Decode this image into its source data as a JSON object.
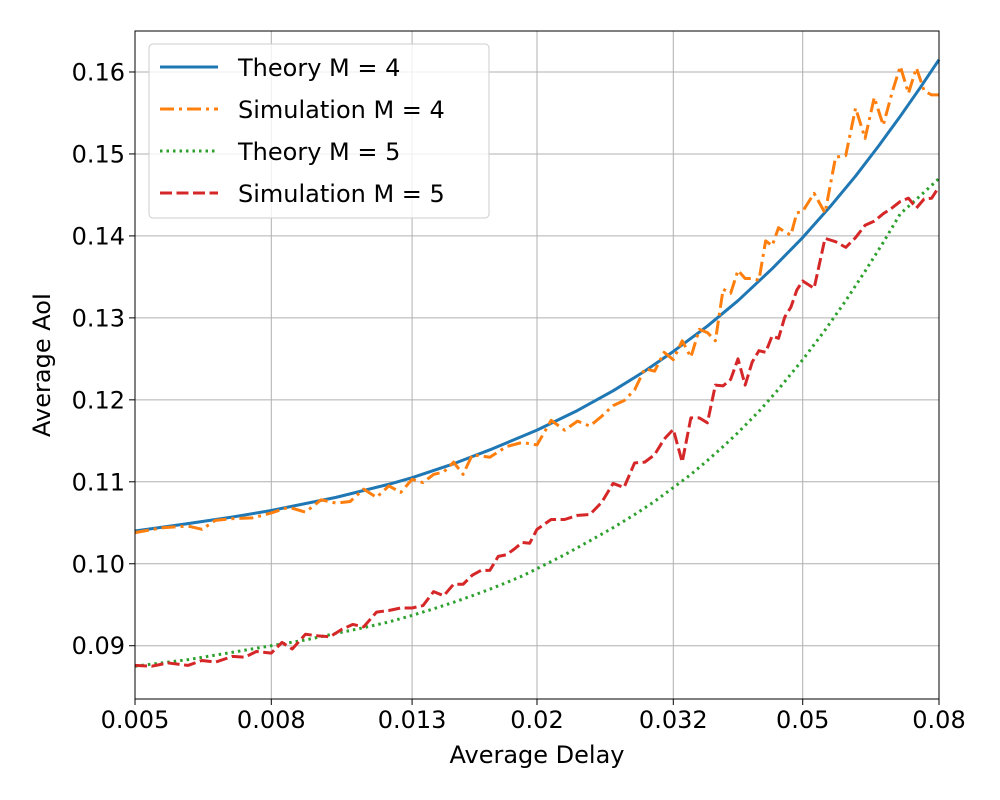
{
  "chart_data": {
    "type": "line",
    "title": "",
    "xlabel": "Average Delay",
    "ylabel": "Average AoI",
    "xscale": "log",
    "xlim": [
      0.005,
      0.08
    ],
    "ylim": [
      0.0835,
      0.165
    ],
    "xticks": [
      0.005,
      0.008,
      0.013,
      0.02,
      0.032,
      0.05,
      0.08
    ],
    "xtick_labels": [
      "0.005",
      "0.008",
      "0.013",
      "0.02",
      "0.032",
      "0.05",
      "0.08"
    ],
    "yticks": [
      0.09,
      0.1,
      0.11,
      0.12,
      0.13,
      0.14,
      0.15,
      0.16
    ],
    "ytick_labels": [
      "0.09",
      "0.10",
      "0.11",
      "0.12",
      "0.13",
      "0.14",
      "0.15",
      "0.16"
    ],
    "grid": true,
    "legend_position": "top-left",
    "series": [
      {
        "name": "Theory M = 4",
        "color": "#1f77b4",
        "style": "solid",
        "x": [
          0.005,
          0.006,
          0.007,
          0.008,
          0.01,
          0.012,
          0.013,
          0.015,
          0.017,
          0.02,
          0.023,
          0.026,
          0.029,
          0.032,
          0.036,
          0.04,
          0.045,
          0.05,
          0.055,
          0.06,
          0.065,
          0.07,
          0.075,
          0.08
        ],
        "y": [
          0.104,
          0.1049,
          0.1057,
          0.1065,
          0.1081,
          0.1097,
          0.1105,
          0.1122,
          0.1139,
          0.1163,
          0.1187,
          0.1211,
          0.1235,
          0.1259,
          0.129,
          0.1321,
          0.136,
          0.1398,
          0.1436,
          0.1473,
          0.151,
          0.1546,
          0.1581,
          0.1615
        ]
      },
      {
        "name": "Simulation M = 4",
        "color": "#ff7f0e",
        "style": "dashdot",
        "x": [
          0.005,
          0.0055,
          0.006,
          0.0063,
          0.0066,
          0.007,
          0.0075,
          0.008,
          0.0085,
          0.009,
          0.0095,
          0.01,
          0.0105,
          0.011,
          0.0115,
          0.012,
          0.0125,
          0.013,
          0.0135,
          0.014,
          0.0145,
          0.015,
          0.0155,
          0.016,
          0.017,
          0.018,
          0.019,
          0.02,
          0.021,
          0.022,
          0.023,
          0.024,
          0.025,
          0.026,
          0.027,
          0.028,
          0.029,
          0.03,
          0.031,
          0.032,
          0.033,
          0.034,
          0.035,
          0.036,
          0.037,
          0.038,
          0.039,
          0.04,
          0.041,
          0.042,
          0.043,
          0.044,
          0.045,
          0.046,
          0.047,
          0.048,
          0.049,
          0.05,
          0.052,
          0.054,
          0.056,
          0.058,
          0.06,
          0.062,
          0.064,
          0.066,
          0.068,
          0.07,
          0.072,
          0.074,
          0.076,
          0.078,
          0.08
        ],
        "y": [
          0.1038,
          0.1044,
          0.1046,
          0.1042,
          0.1053,
          0.1055,
          0.1056,
          0.1062,
          0.1069,
          0.1063,
          0.1078,
          0.1074,
          0.1076,
          0.1091,
          0.1081,
          0.1095,
          0.1087,
          0.1103,
          0.1099,
          0.1109,
          0.1112,
          0.1124,
          0.1109,
          0.1133,
          0.113,
          0.1143,
          0.1148,
          0.1145,
          0.1175,
          0.1163,
          0.1174,
          0.1168,
          0.118,
          0.1193,
          0.1199,
          0.1212,
          0.1238,
          0.1235,
          0.1258,
          0.1249,
          0.1272,
          0.1252,
          0.1286,
          0.1282,
          0.1272,
          0.1335,
          0.133,
          0.1358,
          0.1348,
          0.1348,
          0.1346,
          0.1394,
          0.1388,
          0.141,
          0.1405,
          0.1401,
          0.1428,
          0.143,
          0.1452,
          0.1428,
          0.1496,
          0.1498,
          0.1556,
          0.1519,
          0.1569,
          0.1535,
          0.1574,
          0.1607,
          0.1574,
          0.1605,
          0.1577,
          0.1572,
          0.1572
        ]
      },
      {
        "name": "Theory M = 5",
        "color": "#2ca02c",
        "style": "dotted",
        "x": [
          0.005,
          0.006,
          0.007,
          0.008,
          0.009,
          0.01,
          0.011,
          0.012,
          0.013,
          0.014,
          0.015,
          0.016,
          0.017,
          0.018,
          0.019,
          0.02,
          0.022,
          0.024,
          0.026,
          0.028,
          0.03,
          0.032,
          0.034,
          0.036,
          0.038,
          0.04,
          0.043,
          0.046,
          0.05,
          0.054,
          0.058,
          0.062,
          0.066,
          0.07,
          0.075,
          0.08
        ],
        "y": [
          0.0875,
          0.0883,
          0.0892,
          0.09,
          0.0907,
          0.0915,
          0.0922,
          0.0929,
          0.0937,
          0.0945,
          0.0953,
          0.0961,
          0.0969,
          0.0977,
          0.0985,
          0.0994,
          0.1011,
          0.1028,
          0.1044,
          0.106,
          0.1076,
          0.1093,
          0.1109,
          0.1126,
          0.1143,
          0.116,
          0.1186,
          0.1213,
          0.1249,
          0.1285,
          0.1321,
          0.1357,
          0.1392,
          0.1427,
          0.1449,
          0.147
        ]
      },
      {
        "name": "Simulation M = 5",
        "color": "#d62728",
        "style": "dashed",
        "x": [
          0.005,
          0.0053,
          0.0056,
          0.006,
          0.0063,
          0.0066,
          0.007,
          0.0073,
          0.0076,
          0.008,
          0.0083,
          0.0086,
          0.009,
          0.0094,
          0.0098,
          0.0102,
          0.0106,
          0.011,
          0.0115,
          0.012,
          0.0125,
          0.013,
          0.0135,
          0.014,
          0.0145,
          0.015,
          0.0155,
          0.016,
          0.0165,
          0.017,
          0.0175,
          0.018,
          0.0185,
          0.019,
          0.0195,
          0.02,
          0.021,
          0.022,
          0.023,
          0.024,
          0.025,
          0.026,
          0.027,
          0.028,
          0.029,
          0.03,
          0.031,
          0.032,
          0.033,
          0.034,
          0.035,
          0.036,
          0.037,
          0.038,
          0.039,
          0.04,
          0.041,
          0.042,
          0.043,
          0.044,
          0.045,
          0.046,
          0.047,
          0.048,
          0.049,
          0.05,
          0.052,
          0.054,
          0.056,
          0.058,
          0.06,
          0.062,
          0.064,
          0.066,
          0.068,
          0.07,
          0.072,
          0.074,
          0.076,
          0.078,
          0.08
        ],
        "y": [
          0.0876,
          0.0875,
          0.0879,
          0.0876,
          0.0882,
          0.088,
          0.0887,
          0.0886,
          0.0893,
          0.0891,
          0.0904,
          0.0896,
          0.0914,
          0.0912,
          0.0911,
          0.092,
          0.0926,
          0.0923,
          0.0941,
          0.0943,
          0.0946,
          0.0946,
          0.0949,
          0.0966,
          0.0961,
          0.0975,
          0.0975,
          0.0986,
          0.0992,
          0.0992,
          0.1009,
          0.1011,
          0.1018,
          0.1026,
          0.1025,
          0.1042,
          0.1054,
          0.1054,
          0.1059,
          0.106,
          0.1075,
          0.1098,
          0.1093,
          0.1123,
          0.1124,
          0.1133,
          0.1152,
          0.1164,
          0.1124,
          0.1178,
          0.1178,
          0.1172,
          0.1218,
          0.1217,
          0.1225,
          0.125,
          0.1218,
          0.1246,
          0.126,
          0.1258,
          0.1278,
          0.1275,
          0.1301,
          0.1313,
          0.1334,
          0.1345,
          0.1336,
          0.1397,
          0.1393,
          0.1386,
          0.1398,
          0.1413,
          0.1418,
          0.1427,
          0.1434,
          0.1442,
          0.1446,
          0.1434,
          0.1445,
          0.1446,
          0.146
        ]
      }
    ]
  }
}
